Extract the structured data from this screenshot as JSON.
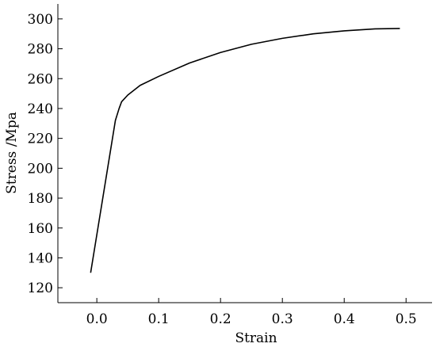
{
  "chart_data": {
    "type": "line",
    "x_label": "Strain",
    "y_label": "Stress /Mpa",
    "x": [
      -0.01,
      0.03,
      0.036,
      0.04,
      0.05,
      0.07,
      0.1,
      0.15,
      0.2,
      0.25,
      0.3,
      0.35,
      0.4,
      0.45,
      0.49
    ],
    "series": [
      {
        "color": "#000000",
        "values": [
          130,
          232,
          240,
          244.5,
          249,
          255.5,
          261.5,
          270.5,
          277.5,
          283,
          287,
          290,
          292,
          293.3,
          293.6
        ]
      }
    ],
    "xlim": [
      -0.063,
      0.542
    ],
    "ylim": [
      110,
      310
    ],
    "xticks": [
      {
        "value": 0,
        "label": "0.0"
      },
      0.1,
      0.2,
      0.3,
      0.4,
      0.5
    ],
    "yticks": [
      120,
      140,
      160,
      180,
      200,
      220,
      240,
      260,
      280,
      300
    ],
    "grid": false
  }
}
